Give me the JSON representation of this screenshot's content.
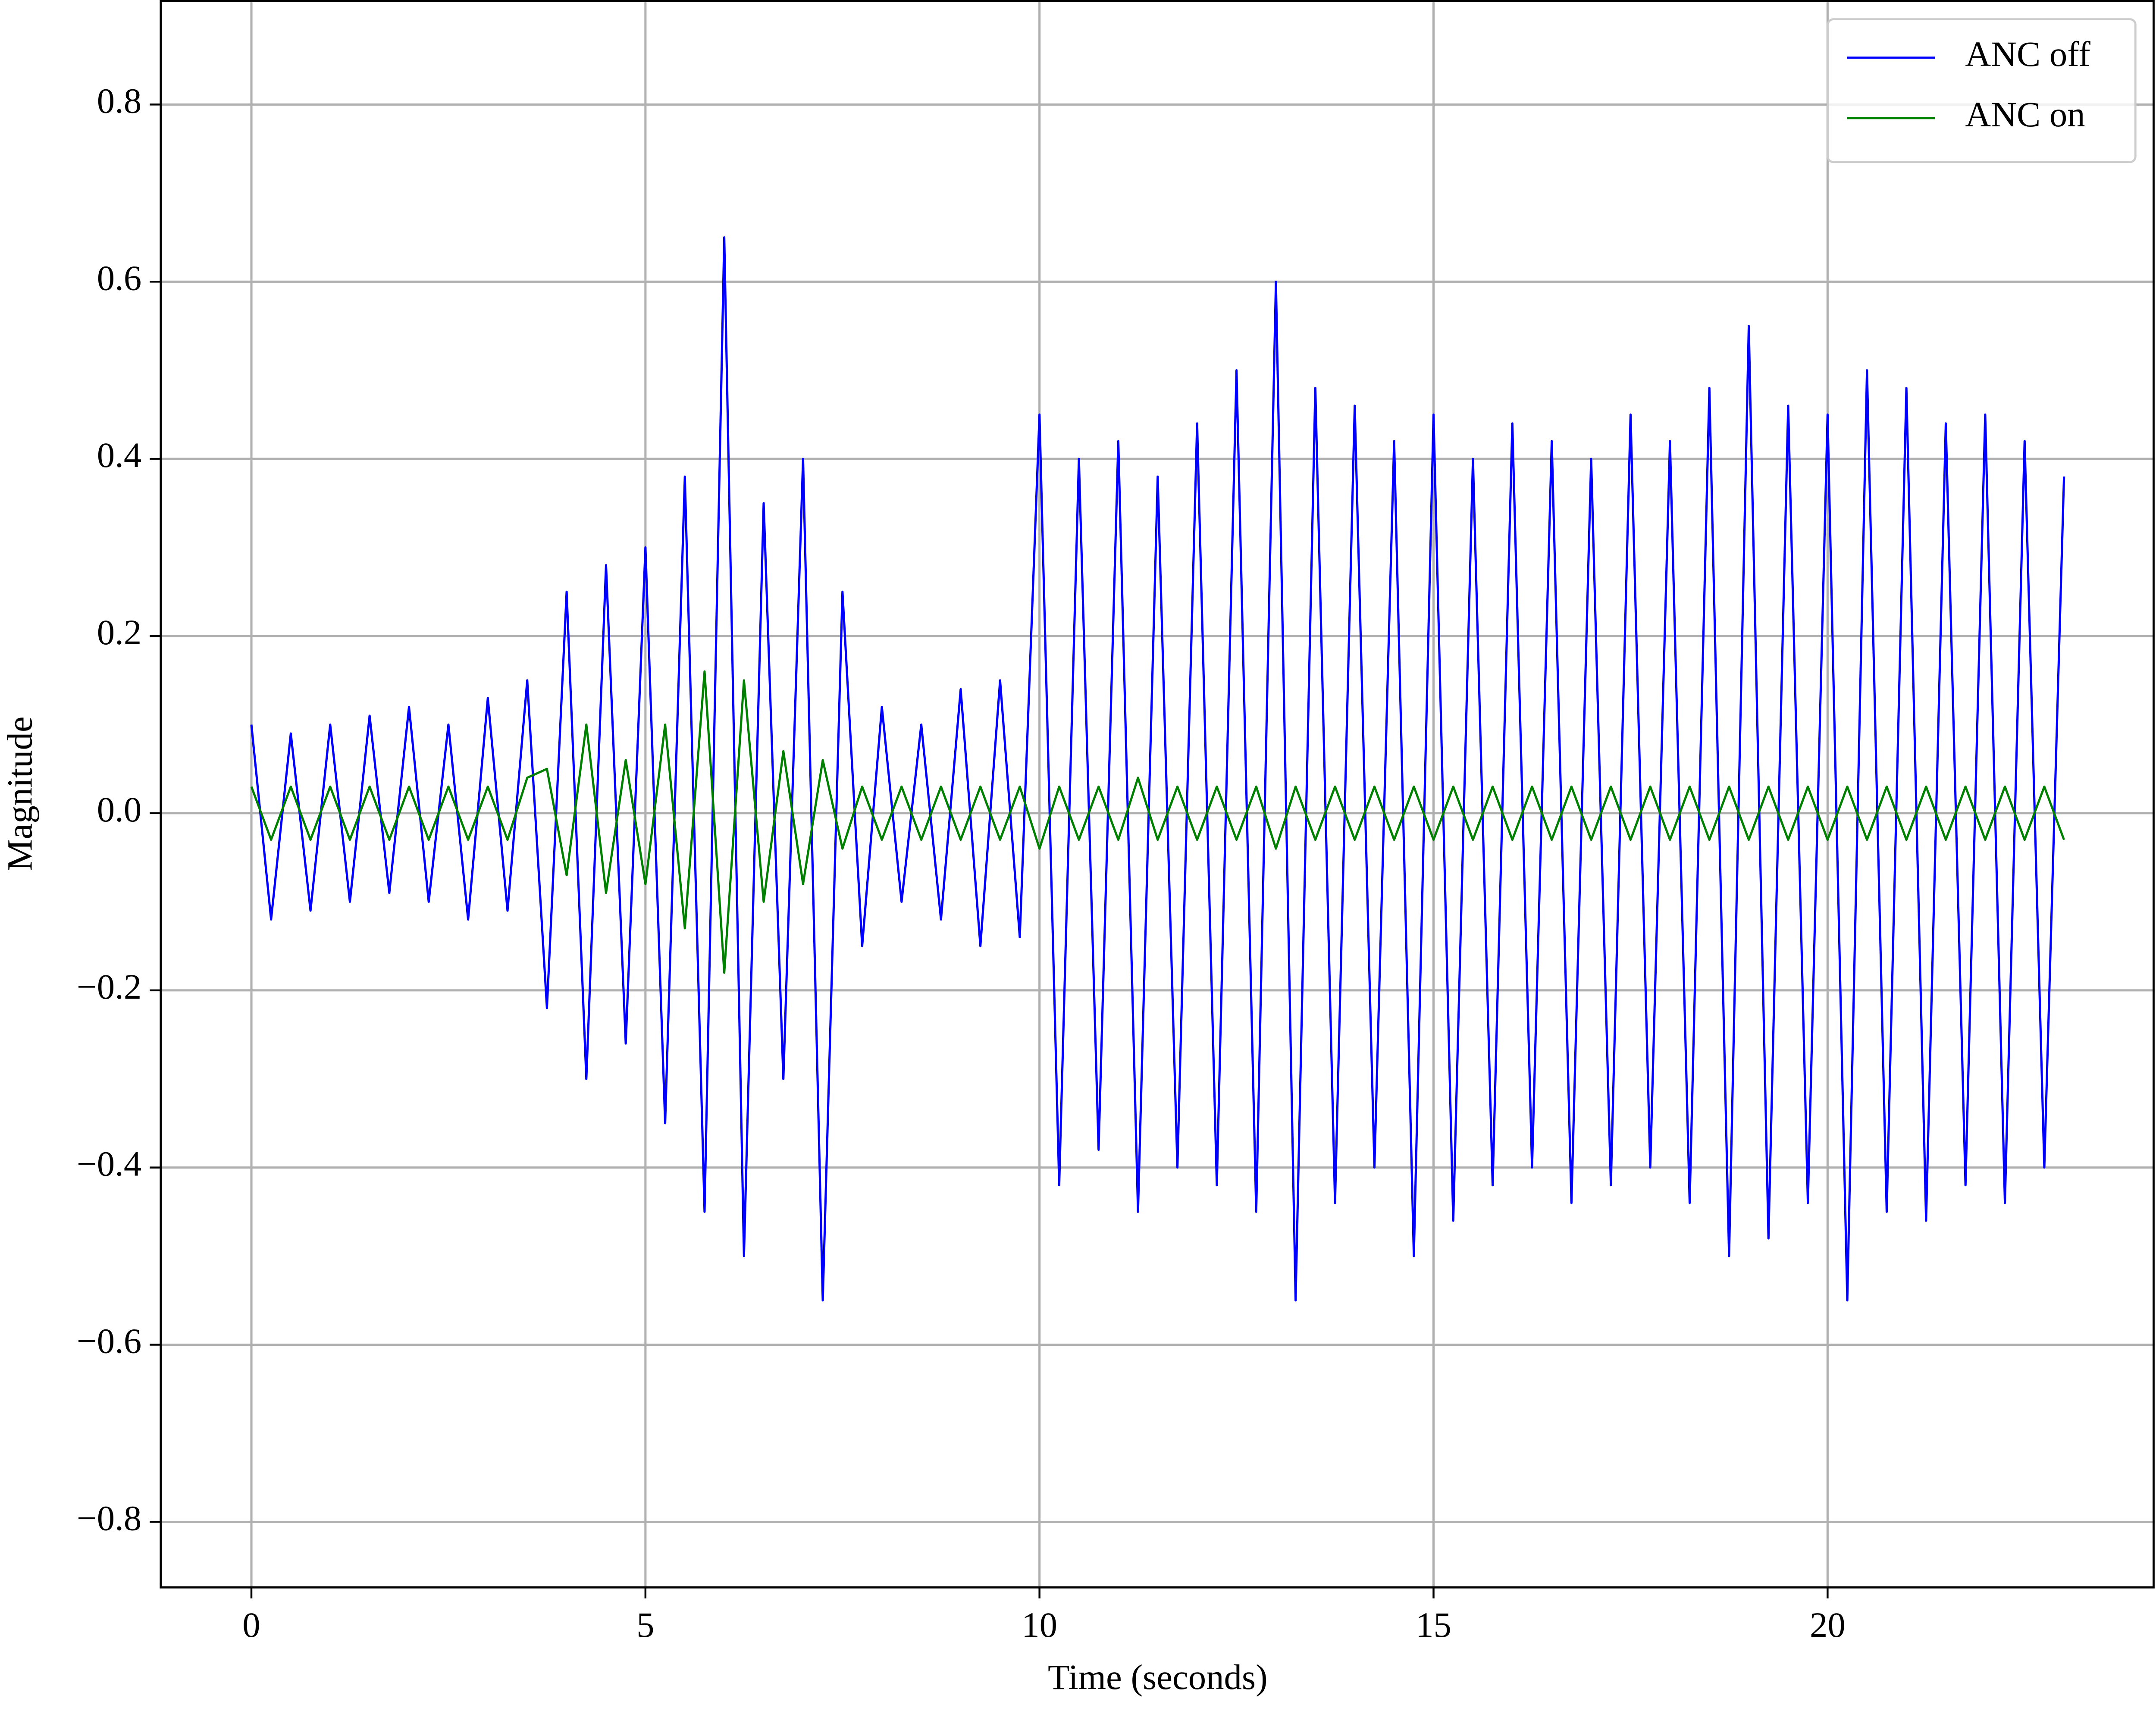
{
  "chart_data": {
    "type": "line",
    "xlabel": "Time (seconds)",
    "ylabel": "Magnitude",
    "xlim": [
      -1.15,
      24.15
    ],
    "ylim": [
      -0.874,
      0.918
    ],
    "xticks": [
      0,
      5,
      10,
      15,
      20
    ],
    "yticks": [
      {
        "value": -0.8,
        "label": "−0.8"
      },
      {
        "value": -0.6,
        "label": "−0.6"
      },
      {
        "value": -0.4,
        "label": "−0.4"
      },
      {
        "value": -0.2,
        "label": "−0.2"
      },
      {
        "value": 0,
        "label": "0.0"
      },
      0.2,
      0.4,
      0.6,
      0.8
    ],
    "grid": true,
    "legend": "upper right",
    "x": [
      0,
      0.25,
      0.5,
      0.75,
      1,
      1.25,
      1.5,
      1.75,
      2,
      2.25,
      2.5,
      2.75,
      3,
      3.25,
      3.5,
      3.75,
      4,
      4.25,
      4.5,
      4.75,
      5,
      5.25,
      5.5,
      5.75,
      6,
      6.25,
      6.5,
      6.75,
      7,
      7.25,
      7.5,
      7.75,
      8,
      8.25,
      8.5,
      8.75,
      9,
      9.25,
      9.5,
      9.75,
      10,
      10.25,
      10.5,
      10.75,
      11,
      11.25,
      11.5,
      11.75,
      12,
      12.25,
      12.5,
      12.75,
      13,
      13.25,
      13.5,
      13.75,
      14,
      14.25,
      14.5,
      14.75,
      15,
      15.25,
      15.5,
      15.75,
      16,
      16.25,
      16.5,
      16.75,
      17,
      17.25,
      17.5,
      17.75,
      18,
      18.25,
      18.5,
      18.75,
      19,
      19.25,
      19.5,
      19.75,
      20,
      20.25,
      20.5,
      20.75,
      21,
      21.25,
      21.5,
      21.75,
      22,
      22.25,
      22.5,
      22.75,
      23
    ],
    "series": [
      {
        "name": "ANC off",
        "color": "#0000ff",
        "values": [
          0.1,
          -0.12,
          0.09,
          -0.11,
          0.1,
          -0.1,
          0.11,
          -0.09,
          0.12,
          -0.1,
          0.1,
          -0.12,
          0.13,
          -0.11,
          0.15,
          -0.22,
          0.25,
          -0.3,
          0.28,
          -0.26,
          0.3,
          -0.35,
          0.38,
          -0.45,
          0.65,
          -0.5,
          0.35,
          -0.3,
          0.4,
          -0.55,
          0.25,
          -0.15,
          0.12,
          -0.1,
          0.1,
          -0.12,
          0.14,
          -0.15,
          0.15,
          -0.14,
          0.45,
          -0.42,
          0.4,
          -0.38,
          0.42,
          -0.45,
          0.38,
          -0.4,
          0.44,
          -0.42,
          0.5,
          -0.45,
          0.6,
          -0.55,
          0.48,
          -0.44,
          0.46,
          -0.4,
          0.42,
          -0.5,
          0.45,
          -0.46,
          0.4,
          -0.42,
          0.44,
          -0.4,
          0.42,
          -0.44,
          0.4,
          -0.42,
          0.45,
          -0.4,
          0.42,
          -0.44,
          0.48,
          -0.5,
          0.55,
          -0.48,
          0.46,
          -0.44,
          0.45,
          -0.55,
          0.5,
          -0.45,
          0.48,
          -0.46,
          0.44,
          -0.42,
          0.45,
          -0.44,
          0.42,
          -0.4,
          0.38
        ]
      },
      {
        "name": "ANC on",
        "color": "#008000",
        "values": [
          0.03,
          -0.03,
          0.03,
          -0.03,
          0.03,
          -0.03,
          0.03,
          -0.03,
          0.03,
          -0.03,
          0.03,
          -0.03,
          0.03,
          -0.03,
          0.04,
          0.05,
          -0.07,
          0.1,
          -0.09,
          0.06,
          -0.08,
          0.1,
          -0.13,
          0.16,
          -0.18,
          0.15,
          -0.1,
          0.07,
          -0.08,
          0.06,
          -0.04,
          0.03,
          -0.03,
          0.03,
          -0.03,
          0.03,
          -0.03,
          0.03,
          -0.03,
          0.03,
          -0.04,
          0.03,
          -0.03,
          0.03,
          -0.03,
          0.04,
          -0.03,
          0.03,
          -0.03,
          0.03,
          -0.03,
          0.03,
          -0.04,
          0.03,
          -0.03,
          0.03,
          -0.03,
          0.03,
          -0.03,
          0.03,
          -0.03,
          0.03,
          -0.03,
          0.03,
          -0.03,
          0.03,
          -0.03,
          0.03,
          -0.03,
          0.03,
          -0.03,
          0.03,
          -0.03,
          0.03,
          -0.03,
          0.03,
          -0.03,
          0.03,
          -0.03,
          0.03,
          -0.03,
          0.03,
          -0.03,
          0.03,
          -0.03,
          0.03,
          -0.03,
          0.03,
          -0.03,
          0.03,
          -0.03,
          0.03,
          -0.03
        ]
      }
    ]
  }
}
